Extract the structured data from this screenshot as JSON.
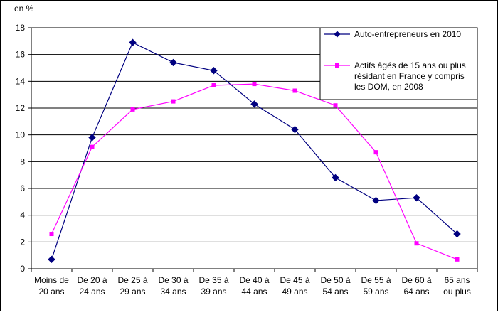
{
  "chart_data": {
    "type": "line",
    "unit_label": "en %",
    "ylim": [
      0,
      18
    ],
    "yticks": [
      0,
      2,
      4,
      6,
      8,
      10,
      12,
      14,
      16,
      18
    ],
    "grid": "horizontal",
    "legend_position": "top-right",
    "categories": [
      [
        "Moins de",
        "20 ans"
      ],
      [
        "De 20 à",
        "24 ans"
      ],
      [
        "De 25 à",
        "29 ans"
      ],
      [
        "De 30 à",
        "34 ans"
      ],
      [
        "De 35 à",
        "39 ans"
      ],
      [
        "De 40 à",
        "44 ans"
      ],
      [
        "De 45 à",
        "49 ans"
      ],
      [
        "De 50 à",
        "54 ans"
      ],
      [
        "De 55 à",
        "59 ans"
      ],
      [
        "De 60 à",
        "64 ans"
      ],
      [
        "65 ans",
        "ou plus"
      ]
    ],
    "series": [
      {
        "name": "Auto-entrepreneurs en 2010",
        "legend_lines": [
          "Auto-entrepreneurs en 2010"
        ],
        "color": "#000080",
        "marker": "diamond",
        "values": [
          0.7,
          9.8,
          16.9,
          15.4,
          14.8,
          12.3,
          10.4,
          6.8,
          5.1,
          5.3,
          2.6
        ]
      },
      {
        "name": "Actifs âgés de 15 ans ou plus résidant en France y compris les DOM, en 2008",
        "legend_lines": [
          "Actifs âgés de 15 ans ou plus",
          "résidant en France y compris",
          "les DOM, en 2008"
        ],
        "color": "#ff00ff",
        "marker": "square",
        "values": [
          2.6,
          9.1,
          11.9,
          12.5,
          13.7,
          13.8,
          13.3,
          12.2,
          8.7,
          1.9,
          0.7
        ]
      }
    ]
  }
}
